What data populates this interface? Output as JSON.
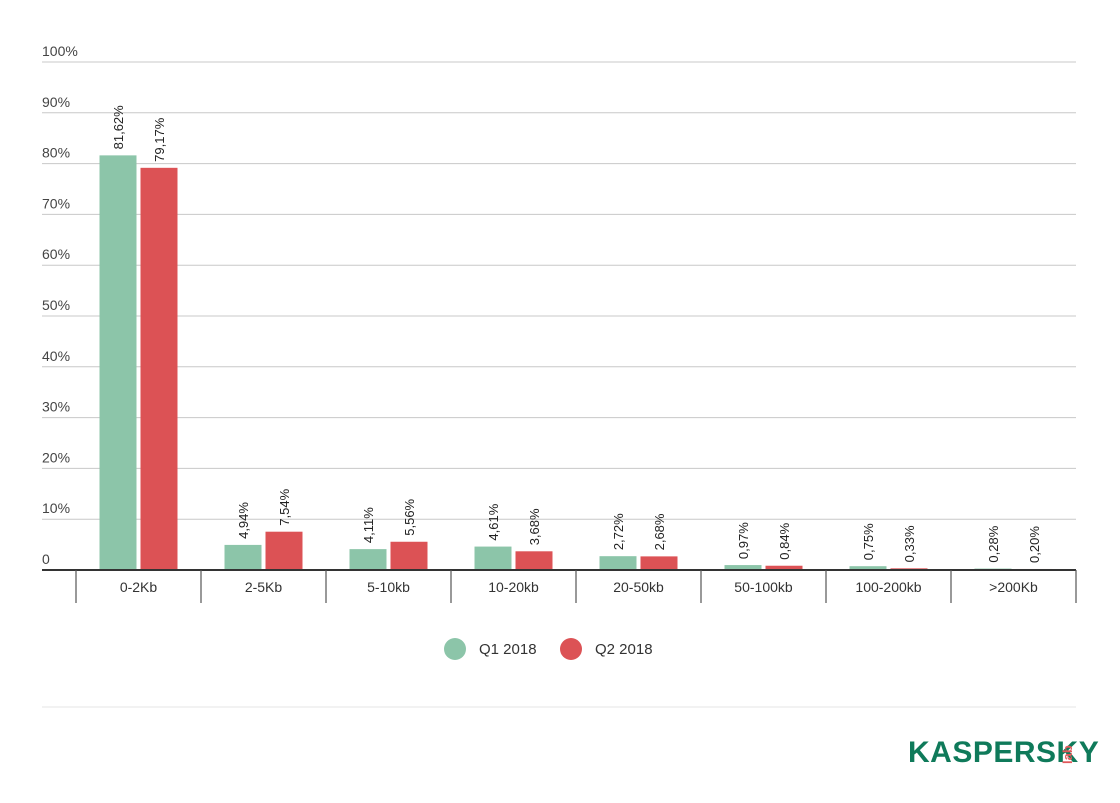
{
  "chart_data": {
    "type": "bar",
    "categories": [
      "0-2Kb",
      "2-5Kb",
      "5-10kb",
      "10-20kb",
      "20-50kb",
      "50-100kb",
      "100-200kb",
      ">200Kb"
    ],
    "series": [
      {
        "name": "Q1 2018",
        "color": "#8cc5a9",
        "values": [
          81.62,
          4.94,
          4.11,
          4.61,
          2.72,
          0.97,
          0.75,
          0.28
        ],
        "labels": [
          "81,62%",
          "4,94%",
          "4,11%",
          "4,61%",
          "2,72%",
          "0,97%",
          "0,75%",
          "0,28%"
        ]
      },
      {
        "name": "Q2 2018",
        "color": "#dc5255",
        "values": [
          79.17,
          7.54,
          5.56,
          3.68,
          2.68,
          0.84,
          0.33,
          0.2
        ],
        "labels": [
          "79,17%",
          "7,54%",
          "5,56%",
          "3,68%",
          "2,68%",
          "0,84%",
          "0,33%",
          "0,20%"
        ]
      }
    ],
    "yticks": [
      "0",
      "10%",
      "20%",
      "30%",
      "40%",
      "50%",
      "60%",
      "70%",
      "80%",
      "90%",
      "100%"
    ],
    "ylim": [
      0,
      100
    ],
    "grid": true,
    "legend": "bottom-center"
  },
  "logo": {
    "main": "KASPERSKY",
    "sub": "lab"
  }
}
